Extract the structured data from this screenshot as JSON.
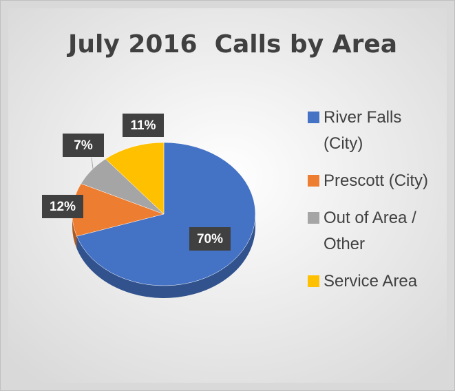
{
  "chart_data": {
    "type": "pie",
    "title": "July 2016  Calls by Area",
    "categories": [
      "River Falls (City)",
      "Prescott (City)",
      "Out of Area / Other",
      "Service Area"
    ],
    "values": [
      70,
      12,
      7,
      11
    ],
    "value_labels": [
      "70%",
      "12%",
      "7%",
      "11%"
    ],
    "colors": [
      "#4472c4",
      "#ed7d31",
      "#a5a5a5",
      "#ffc000"
    ]
  }
}
